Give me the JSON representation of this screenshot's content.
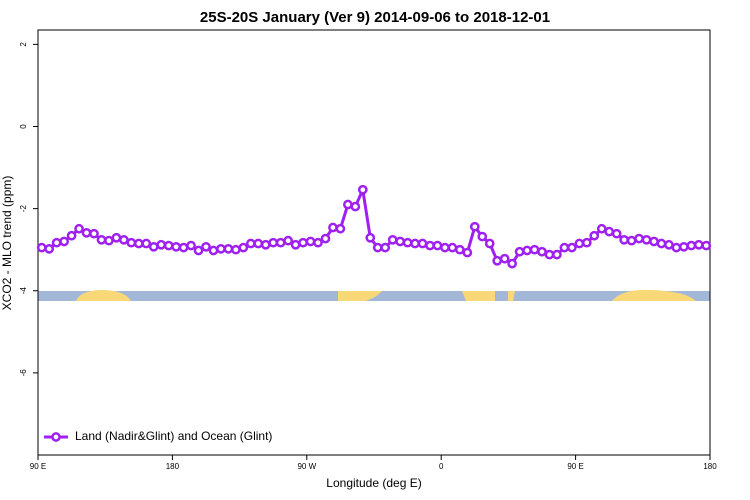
{
  "chart_data": {
    "type": "line",
    "title": "25S-20S January (Ver 9)   2014-09-06 to 2018-12-01",
    "xlabel": "Longitude (deg E)",
    "ylabel": "XCO2 - MLO trend (ppm)",
    "xlim": [
      90,
      540
    ],
    "ylim": [
      -8,
      2.35
    ],
    "xticks": [
      {
        "value": 90,
        "label": "90 E"
      },
      180,
      {
        "value": 270,
        "label": "90 W"
      },
      {
        "value": 360,
        "label": "0"
      },
      {
        "value": 450,
        "label": "90 E"
      },
      {
        "value": 540,
        "label": "180"
      }
    ],
    "yticks": [
      -6,
      -4,
      -2,
      0,
      2
    ],
    "legend": "bottom-left",
    "series": [
      {
        "name": "Land (Nadir&Glint) and Ocean (Glint)",
        "color": "#a020f0",
        "values": [
          -2.95,
          -2.98,
          -2.83,
          -2.8,
          -2.66,
          -2.49,
          -2.59,
          -2.61,
          -2.76,
          -2.78,
          -2.71,
          -2.76,
          -2.83,
          -2.85,
          -2.85,
          -2.93,
          -2.88,
          -2.9,
          -2.93,
          -2.95,
          -2.9,
          -3.02,
          -2.93,
          -3.02,
          -2.98,
          -2.98,
          -3.0,
          -2.95,
          -2.85,
          -2.85,
          -2.88,
          -2.83,
          -2.83,
          -2.78,
          -2.88,
          -2.83,
          -2.8,
          -2.83,
          -2.73,
          -2.46,
          -2.49,
          -1.9,
          -1.95,
          -1.54,
          -2.71,
          -2.95,
          -2.95,
          -2.76,
          -2.8,
          -2.83,
          -2.85,
          -2.85,
          -2.9,
          -2.9,
          -2.95,
          -2.95,
          -3.0,
          -3.07,
          -2.44,
          -2.68,
          -2.85,
          -3.27,
          -3.22,
          -3.34,
          -3.05,
          -3.02,
          -3.0,
          -3.05,
          -3.12,
          -3.12,
          -2.95,
          -2.95,
          -2.85,
          -2.83,
          -2.66,
          -2.49,
          -2.56,
          -2.61,
          -2.76,
          -2.78,
          -2.73,
          -2.76,
          -2.8,
          -2.85,
          -2.88,
          -2.95,
          -2.93,
          -2.9,
          -2.88,
          -2.9
        ]
      }
    ],
    "x": [
      92.5,
      97.5,
      102.5,
      107.5,
      112.5,
      117.5,
      122.5,
      127.5,
      132.5,
      137.5,
      142.5,
      147.5,
      152.5,
      157.5,
      162.5,
      167.5,
      172.5,
      177.5,
      182.5,
      187.5,
      192.5,
      197.5,
      202.5,
      207.5,
      212.5,
      217.5,
      222.5,
      227.5,
      232.5,
      237.5,
      242.5,
      247.5,
      252.5,
      257.5,
      262.5,
      267.5,
      272.5,
      277.5,
      282.5,
      287.5,
      292.5,
      297.5,
      302.5,
      307.5,
      312.5,
      317.5,
      322.5,
      327.5,
      332.5,
      337.5,
      342.5,
      347.5,
      352.5,
      357.5,
      362.5,
      367.5,
      372.5,
      377.5,
      382.5,
      387.5,
      392.5,
      397.5,
      402.5,
      407.5,
      412.5,
      417.5,
      422.5,
      427.5,
      432.5,
      437.5,
      442.5,
      447.5,
      452.5,
      457.5,
      462.5,
      467.5,
      472.5,
      477.5,
      482.5,
      487.5,
      492.5,
      497.5,
      502.5,
      507.5,
      512.5,
      517.5,
      522.5,
      527.5,
      532.5,
      537.5
    ]
  }
}
